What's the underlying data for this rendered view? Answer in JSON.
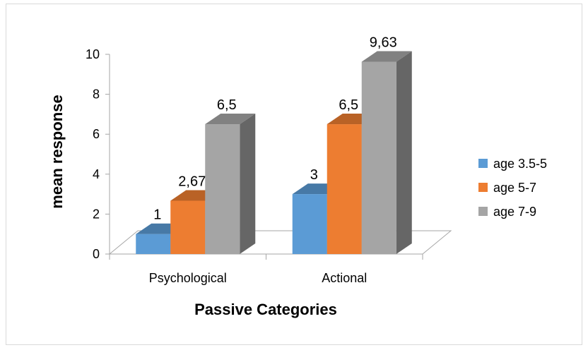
{
  "chart_data": {
    "type": "bar",
    "title": "",
    "xlabel": "Passive Categories",
    "ylabel": "mean response",
    "categories": [
      "Psychological",
      "Actional"
    ],
    "series": [
      {
        "name": "age 3.5-5",
        "values": [
          1,
          3
        ],
        "labels": [
          "1",
          "3"
        ],
        "color": "#5B9BD5"
      },
      {
        "name": "age 5-7",
        "values": [
          2.67,
          6.5
        ],
        "labels": [
          "2,67",
          "6,5"
        ],
        "color": "#ED7D31"
      },
      {
        "name": "age 7-9",
        "values": [
          6.5,
          9.63
        ],
        "labels": [
          "6,5",
          "9,63"
        ],
        "color": "#A5A5A5"
      }
    ],
    "ylim": [
      0,
      10
    ],
    "yticks": [
      0,
      2,
      4,
      6,
      8,
      10
    ],
    "ytick_labels": [
      "0",
      "2",
      "4",
      "6",
      "8",
      "10"
    ],
    "grid": false,
    "legend_position": "right",
    "style": "3d-column"
  }
}
